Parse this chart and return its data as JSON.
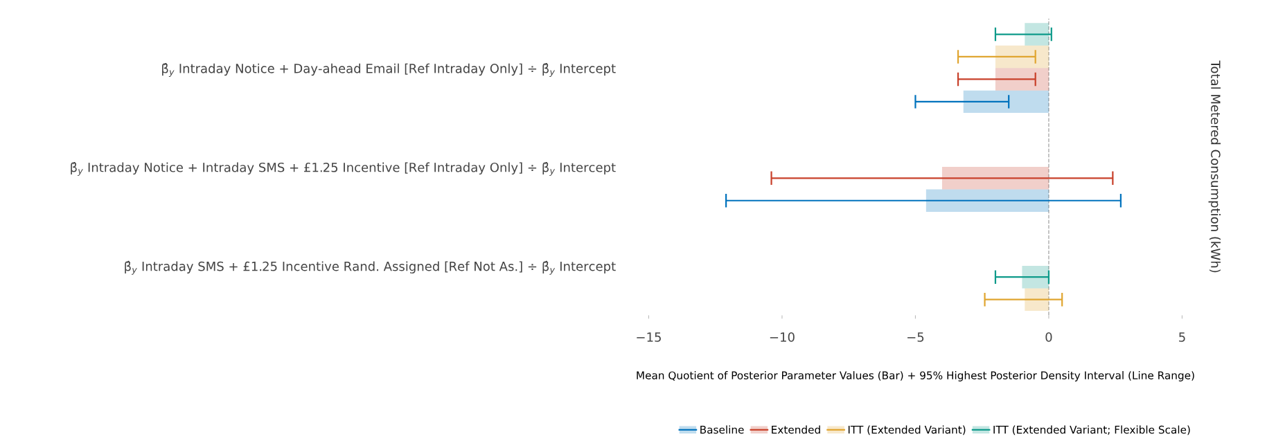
{
  "chart_data": {
    "type": "bar",
    "orientation": "horizontal",
    "categories": [
      "β̂$_{y}$ Intraday Notice + Day-ahead Email [Ref Intraday Only] ÷ β̂$_{y}$ Intercept",
      "β̂$_{y}$ Intraday Notice + Intraday SMS + £1.25 Incentive [Ref Intraday Only] ÷ β̂$_{y}$ Intercept",
      "β̂$_{y}$ Intraday SMS + £1.25 Incentive Rand. Assigned [Ref Not As.] ÷ β̂$_{y}$ Intercept"
    ],
    "series": [
      {
        "name": "Baseline",
        "color": "#0072bd",
        "values": [
          -3.2,
          -4.6,
          null
        ],
        "errors": [
          [
            -5.0,
            -1.5
          ],
          [
            -12.1,
            2.7
          ],
          null
        ]
      },
      {
        "name": "Extended",
        "color": "#c8412b",
        "values": [
          -2.0,
          -4.0,
          null
        ],
        "errors": [
          [
            -3.4,
            -0.5
          ],
          [
            -10.4,
            2.4
          ],
          null
        ]
      },
      {
        "name": "ITT (Extended Variant)",
        "color": "#e0a530",
        "values": [
          -2.0,
          null,
          -0.9
        ],
        "errors": [
          [
            -3.4,
            -0.5
          ],
          null,
          [
            -2.4,
            0.5
          ]
        ]
      },
      {
        "name": "ITT (Extended Variant; Flexible Scale)",
        "color": "#0e9a8a",
        "values": [
          -0.9,
          null,
          -1.0
        ],
        "errors": [
          [
            -2.0,
            0.1
          ],
          null,
          [
            -2.0,
            0.0
          ]
        ]
      }
    ],
    "xlim": [
      -15,
      5
    ],
    "xticks": [
      {
        "value": -15,
        "label": "−15"
      },
      {
        "value": -10,
        "label": "−10"
      },
      {
        "value": -5,
        "label": "−5"
      },
      0,
      5
    ],
    "xlabel": "Mean Quotient of Posterior Parameter Values (Bar) + 95% Highest Posterior Density Interval (Line Range)",
    "ylabel": "Total Metered Consumption (kWh)",
    "ref_lines": [
      {
        "axis": "x",
        "value": 0,
        "color": "#aaaaaa",
        "line_style": "dashed"
      }
    ],
    "grid": false,
    "legend": "bottom"
  }
}
